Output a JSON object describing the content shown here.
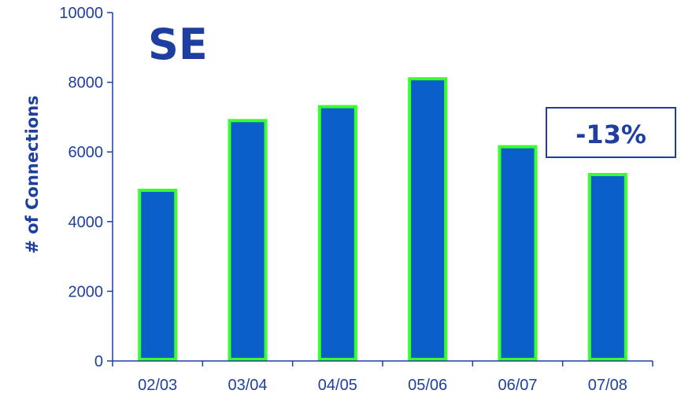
{
  "chart_data": {
    "type": "bar",
    "title": "SE",
    "ylabel": "# of Connections",
    "xlabel": "",
    "categories": [
      "02/03",
      "03/04",
      "04/05",
      "05/06",
      "06/07",
      "07/08"
    ],
    "values": [
      4900,
      6900,
      7300,
      8100,
      6150,
      5350
    ],
    "ylim": [
      0,
      10000
    ],
    "yticks": [
      "0",
      "2000",
      "4000",
      "6000",
      "8000",
      "10000"
    ],
    "annotation": "-13%",
    "grid": false,
    "colors": {
      "bar_fill": "#0a5fc8",
      "bar_outline": "#39ff2a",
      "text": "#1f3fa0",
      "axis": "#1f3fa0",
      "annotation_border": "#1f3fa0"
    }
  }
}
